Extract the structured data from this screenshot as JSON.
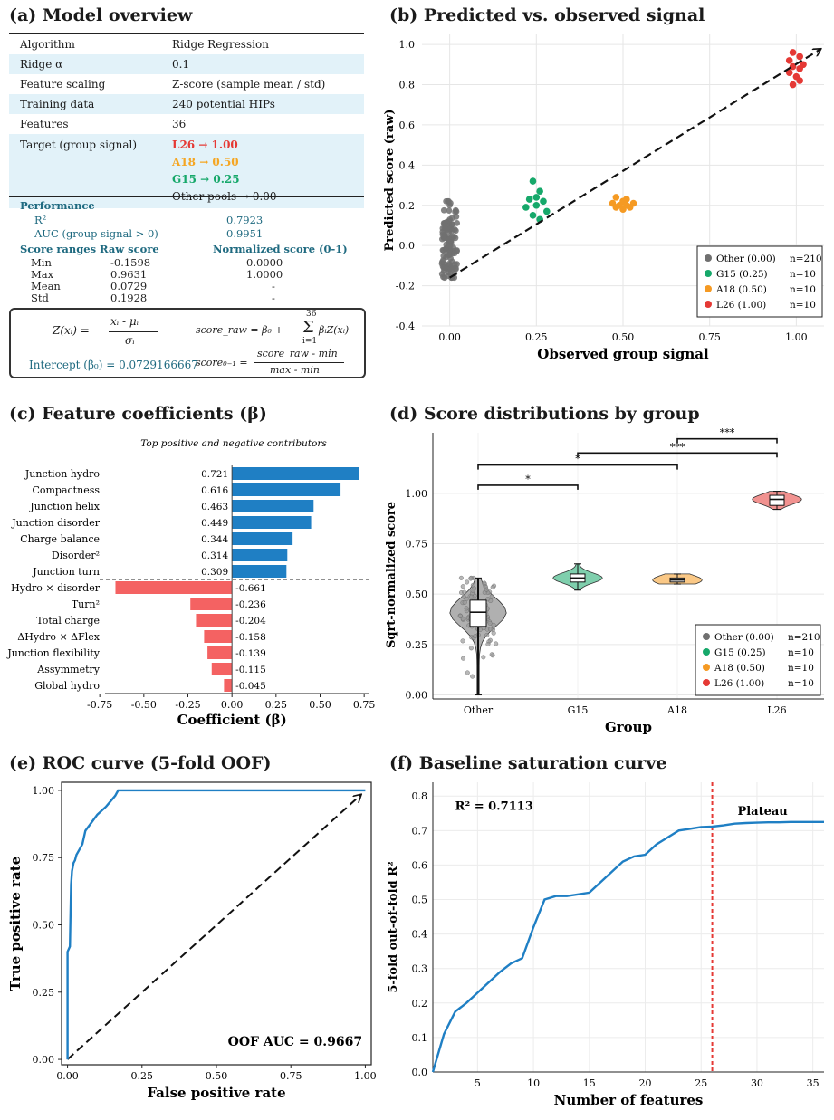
{
  "panel_a": {
    "title": "(a) Model overview",
    "rows": [
      {
        "key": "Algorithm",
        "val": "Ridge Regression"
      },
      {
        "key": "Ridge α",
        "val": "0.1"
      },
      {
        "key": "Feature scaling",
        "val": "Z-score (sample mean / std)"
      },
      {
        "key": "Training data",
        "val": "240 potential HIPs"
      },
      {
        "key": "Features",
        "val": "36"
      }
    ],
    "target_label": "Target (group signal)",
    "targets": [
      {
        "text": "L26  →  1.00",
        "color": "#e53935"
      },
      {
        "text": "A18  →  0.50",
        "color": "#f5a623"
      },
      {
        "text": "G15  →  0.25",
        "color": "#16a86a"
      }
    ],
    "target_other": "Other pools → 0.00",
    "performance_label": "Performance",
    "r2_label": "R²",
    "r2_value": "0.7923",
    "auc_label": "AUC (group signal > 0)",
    "auc_value": "0.9951",
    "ranges_label": "Score ranges",
    "raw_header": "Raw score",
    "norm_header": "Normalized score (0-1)",
    "ranges": [
      {
        "name": "Min",
        "raw": "-0.1598",
        "norm": "0.0000"
      },
      {
        "name": "Max",
        "raw": "0.9631",
        "norm": "1.0000"
      },
      {
        "name": "Mean",
        "raw": "0.0729",
        "norm": "-"
      },
      {
        "name": "Std",
        "raw": "0.1928",
        "norm": "-"
      }
    ],
    "eq_z": "Z(xᵢ) =",
    "eq_z_num": "xᵢ  -  μᵢ",
    "eq_z_den": "σᵢ",
    "eq_raw_lhs": "score_raw  =  β₀ +",
    "eq_sum_top": "36",
    "eq_sum_bot": "i=1",
    "eq_sum_sym": "Σ",
    "eq_raw_rhs": "βᵢZ(xᵢ)",
    "eq_norm_lhs": "score₀₋₁  =",
    "eq_norm_num": "score_raw  -  min",
    "eq_norm_den": "max  -  min",
    "intercept": "Intercept (β₀) = 0.0729166667"
  },
  "chart_data": [
    {
      "id": "b",
      "type": "scatter",
      "title": "(b) Predicted vs. observed signal",
      "xlabel": "Observed group signal",
      "ylabel": "Predicted score (raw)",
      "xlim": [
        -0.08,
        1.08
      ],
      "ylim": [
        -0.4,
        1.05
      ],
      "xticks": [
        0.0,
        0.25,
        0.5,
        0.75,
        1.0
      ],
      "xtick_labels": [
        "0.00",
        "0.25",
        "0.50",
        "0.75",
        "1.00"
      ],
      "yticks": [
        -0.4,
        -0.2,
        0.0,
        0.2,
        0.4,
        0.6,
        0.8,
        1.0
      ],
      "ytick_labels": [
        "-0.4",
        "-0.2",
        "0.0",
        "0.2",
        "0.4",
        "0.6",
        "0.8",
        "1.0"
      ],
      "grid": true,
      "legend_position": "bottom-right",
      "reference_line": {
        "from": [
          0.0,
          -0.16
        ],
        "to": [
          1.08,
          0.99
        ],
        "style": "dashed-arrow"
      },
      "series": [
        {
          "name": "Other (0.00)",
          "count_label": "n=210",
          "color": "#707070",
          "x_center": 0.0,
          "y_min": -0.16,
          "y_max": 0.22,
          "y_mean": 0.02,
          "n": 210
        },
        {
          "name": "G15 (0.25)",
          "count_label": "n=10",
          "color": "#16a86a",
          "points": [
            [
              0.24,
              0.32
            ],
            [
              0.26,
              0.27
            ],
            [
              0.23,
              0.23
            ],
            [
              0.27,
              0.22
            ],
            [
              0.25,
              0.2
            ],
            [
              0.22,
              0.19
            ],
            [
              0.28,
              0.17
            ],
            [
              0.24,
              0.15
            ],
            [
              0.26,
              0.13
            ],
            [
              0.25,
              0.24
            ]
          ]
        },
        {
          "name": "A18 (0.50)",
          "count_label": "n=10",
          "color": "#f59a23",
          "points": [
            [
              0.48,
              0.24
            ],
            [
              0.51,
              0.23
            ],
            [
              0.5,
              0.22
            ],
            [
              0.47,
              0.21
            ],
            [
              0.53,
              0.21
            ],
            [
              0.49,
              0.2
            ],
            [
              0.52,
              0.19
            ],
            [
              0.5,
              0.18
            ],
            [
              0.48,
              0.19
            ],
            [
              0.51,
              0.2
            ]
          ]
        },
        {
          "name": "L26 (1.00)",
          "count_label": "n=10",
          "color": "#e53935",
          "points": [
            [
              0.99,
              0.96
            ],
            [
              1.01,
              0.94
            ],
            [
              0.98,
              0.92
            ],
            [
              1.02,
              0.9
            ],
            [
              0.99,
              0.89
            ],
            [
              1.01,
              0.88
            ],
            [
              0.98,
              0.86
            ],
            [
              1.0,
              0.84
            ],
            [
              1.01,
              0.82
            ],
            [
              0.99,
              0.8
            ]
          ]
        }
      ]
    },
    {
      "id": "c",
      "type": "bar",
      "orientation": "horizontal",
      "title": "(c) Feature coefficients (β)",
      "subtitle": "Top positive and negative contributors",
      "xlabel": "Coefficient (β)",
      "xlim": [
        -0.72,
        0.78
      ],
      "xticks": [
        -0.75,
        -0.5,
        -0.25,
        0.0,
        0.25,
        0.5,
        0.75
      ],
      "xtick_labels": [
        "-0.75",
        "-0.50",
        "-0.25",
        "0.00",
        "0.25",
        "0.50",
        "0.75"
      ],
      "positive_color": "#1f7fc4",
      "negative_color": "#f46262",
      "categories": [
        "Junction hydro",
        "Compactness",
        "Junction helix",
        "Junction disorder",
        "Charge balance",
        "Disorder²",
        "Junction turn",
        "Hydro × disorder",
        "Turn²",
        "Total charge",
        "ΔHydro × ΔFlex",
        "Junction flexibility",
        "Assymmetry",
        "Global hydro"
      ],
      "values": [
        0.721,
        0.616,
        0.463,
        0.449,
        0.344,
        0.314,
        0.309,
        -0.661,
        -0.236,
        -0.204,
        -0.158,
        -0.139,
        -0.115,
        -0.045
      ],
      "value_labels": [
        "0.721",
        "0.616",
        "0.463",
        "0.449",
        "0.344",
        "0.314",
        "0.309",
        "-0.661",
        "-0.236",
        "-0.204",
        "-0.158",
        "-0.139",
        "-0.115",
        "-0.045"
      ]
    },
    {
      "id": "d",
      "type": "violin",
      "title": "(d) Score distributions by group",
      "xlabel": "Group",
      "ylabel": "Sqrt-normalized score",
      "ylim": [
        -0.02,
        1.3
      ],
      "yticks": [
        0.0,
        0.25,
        0.5,
        0.75,
        1.0
      ],
      "ytick_labels": [
        "0.00",
        "0.25",
        "0.50",
        "0.75",
        "1.00"
      ],
      "categories": [
        "Other",
        "G15",
        "A18",
        "L26"
      ],
      "grid": true,
      "legend_position": "bottom-right",
      "groups": [
        {
          "name": "Other (0.00)",
          "count_label": "n=210",
          "color": "#707070",
          "min": 0.0,
          "q1": 0.34,
          "median": 0.41,
          "q3": 0.47,
          "max": 0.58
        },
        {
          "name": "G15 (0.25)",
          "count_label": "n=10",
          "color": "#16a86a",
          "min": 0.52,
          "q1": 0.56,
          "median": 0.58,
          "q3": 0.6,
          "max": 0.65
        },
        {
          "name": "A18 (0.50)",
          "count_label": "n=10",
          "color": "#f59a23",
          "min": 0.55,
          "q1": 0.56,
          "median": 0.57,
          "q3": 0.58,
          "max": 0.6
        },
        {
          "name": "L26 (1.00)",
          "count_label": "n=10",
          "color": "#e53935",
          "min": 0.92,
          "q1": 0.94,
          "median": 0.97,
          "q3": 0.99,
          "max": 1.01
        }
      ],
      "significance": [
        {
          "from": "Other",
          "to": "G15",
          "label": "*",
          "y": 1.04
        },
        {
          "from": "Other",
          "to": "A18",
          "label": "*",
          "y": 1.14
        },
        {
          "from": "G15",
          "to": "L26",
          "label": "***",
          "y": 1.2
        },
        {
          "from": "A18",
          "to": "L26",
          "label": "***",
          "y": 1.27
        }
      ]
    },
    {
      "id": "e",
      "type": "line",
      "title": "(e) ROC curve (5-fold OOF)",
      "xlabel": "False positive rate",
      "ylabel": "True positive rate",
      "xlim": [
        -0.02,
        1.02
      ],
      "ylim": [
        -0.02,
        1.03
      ],
      "xticks": [
        0.0,
        0.25,
        0.5,
        0.75,
        1.0
      ],
      "xtick_labels": [
        "0.00",
        "0.25",
        "0.50",
        "0.75",
        "1.00"
      ],
      "yticks": [
        0.0,
        0.25,
        0.5,
        0.75,
        1.0
      ],
      "ytick_labels": [
        "0.00",
        "0.25",
        "0.50",
        "0.75",
        "1.00"
      ],
      "annotation": "OOF AUC = 0.9667",
      "color": "#1f7fc4",
      "x": [
        0.0,
        0.0,
        0.008,
        0.01,
        0.012,
        0.015,
        0.02,
        0.025,
        0.03,
        0.04,
        0.05,
        0.06,
        0.08,
        0.1,
        0.13,
        0.16,
        0.17,
        1.0
      ],
      "y": [
        0.0,
        0.4,
        0.42,
        0.55,
        0.65,
        0.7,
        0.73,
        0.74,
        0.76,
        0.78,
        0.8,
        0.85,
        0.88,
        0.91,
        0.94,
        0.98,
        1.0,
        1.0
      ],
      "diagonal": true
    },
    {
      "id": "f",
      "type": "line",
      "title": "(f) Baseline saturation curve",
      "xlabel": "Number of features",
      "ylabel": "5-fold out-of-fold R²",
      "xlim": [
        1,
        36
      ],
      "ylim": [
        0.0,
        0.84
      ],
      "xticks": [
        5,
        10,
        15,
        20,
        25,
        30,
        35
      ],
      "xtick_labels": [
        "5",
        "10",
        "15",
        "20",
        "25",
        "30",
        "35"
      ],
      "yticks": [
        0.0,
        0.1,
        0.2,
        0.3,
        0.4,
        0.5,
        0.6,
        0.7,
        0.8
      ],
      "ytick_labels": [
        "0.0",
        "0.1",
        "0.2",
        "0.3",
        "0.4",
        "0.5",
        "0.6",
        "0.7",
        "0.8"
      ],
      "grid": true,
      "annotation": "R² = 0.7113",
      "plateau_label": "Plateau",
      "plateau_x": 26,
      "color": "#1f7fc4",
      "x": [
        1,
        2,
        3,
        4,
        5,
        6,
        7,
        8,
        9,
        10,
        11,
        12,
        13,
        14,
        15,
        16,
        17,
        18,
        19,
        20,
        21,
        22,
        23,
        24,
        25,
        26,
        27,
        28,
        29,
        30,
        31,
        32,
        33,
        34,
        35,
        36
      ],
      "y": [
        0.0,
        0.11,
        0.175,
        0.2,
        0.23,
        0.26,
        0.29,
        0.315,
        0.33,
        0.42,
        0.5,
        0.51,
        0.51,
        0.515,
        0.52,
        0.55,
        0.58,
        0.61,
        0.625,
        0.63,
        0.66,
        0.68,
        0.7,
        0.705,
        0.71,
        0.7113,
        0.715,
        0.72,
        0.722,
        0.723,
        0.724,
        0.724,
        0.725,
        0.725,
        0.725,
        0.725
      ]
    }
  ]
}
